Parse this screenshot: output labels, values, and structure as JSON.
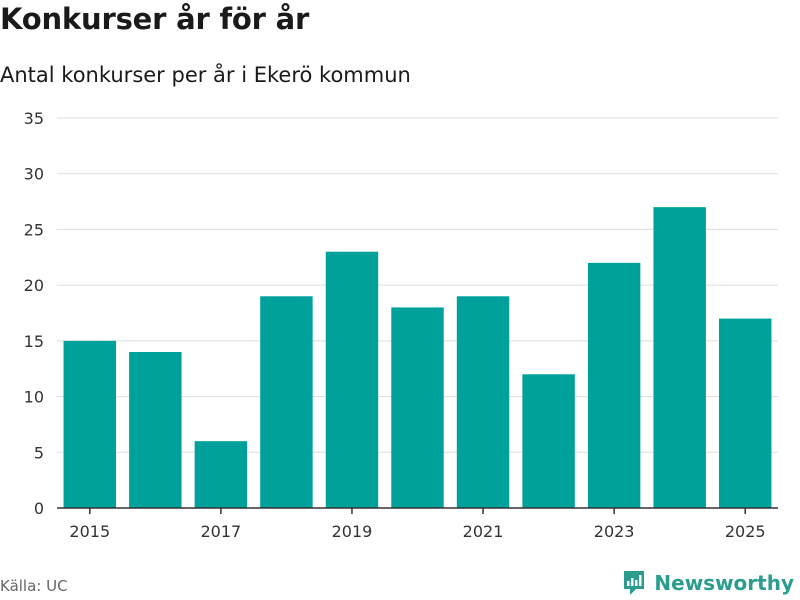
{
  "header": {
    "title": "Konkurser år för år",
    "subtitle": "Antal konkurser per år i Ekerö kommun"
  },
  "footer": {
    "source": "Källa: UC",
    "brand": "Newsworthy",
    "brand_icon": "newsworthy-logo-icon"
  },
  "colors": {
    "bar": "#00a19a",
    "grid": "#dddddd",
    "axis": "#333333",
    "brand": "#2a9d8f"
  },
  "chart_data": {
    "type": "bar",
    "title": "Konkurser år för år",
    "subtitle": "Antal konkurser per år i Ekerö kommun",
    "xlabel": "",
    "ylabel": "",
    "categories": [
      "2015",
      "2016",
      "2017",
      "2018",
      "2019",
      "2020",
      "2021",
      "2022",
      "2023",
      "2024",
      "2025"
    ],
    "x_tick_labels": [
      "2015",
      "2017",
      "2019",
      "2021",
      "2023",
      "2025"
    ],
    "values": [
      15,
      14,
      6,
      19,
      23,
      18,
      19,
      12,
      22,
      27,
      17
    ],
    "ylim": [
      0,
      35
    ],
    "y_ticks": [
      0,
      5,
      10,
      15,
      20,
      25,
      30,
      35
    ],
    "grid": true,
    "legend": "none"
  }
}
